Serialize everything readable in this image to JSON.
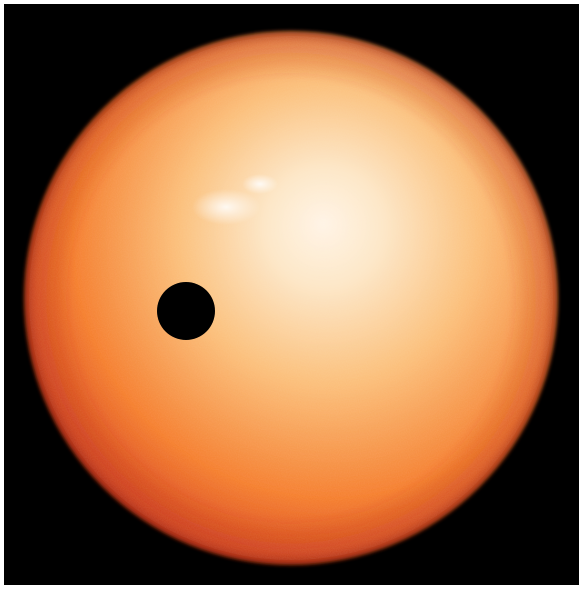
{
  "image": {
    "colors": {
      "frame": "#ffffff",
      "background": "#000000",
      "star_core": "#fff4e6",
      "star_mid": "#fbbf7a",
      "star_outer": "#f57d2c",
      "star_limb": "#d5401c",
      "transiting_body": "#000000"
    }
  }
}
